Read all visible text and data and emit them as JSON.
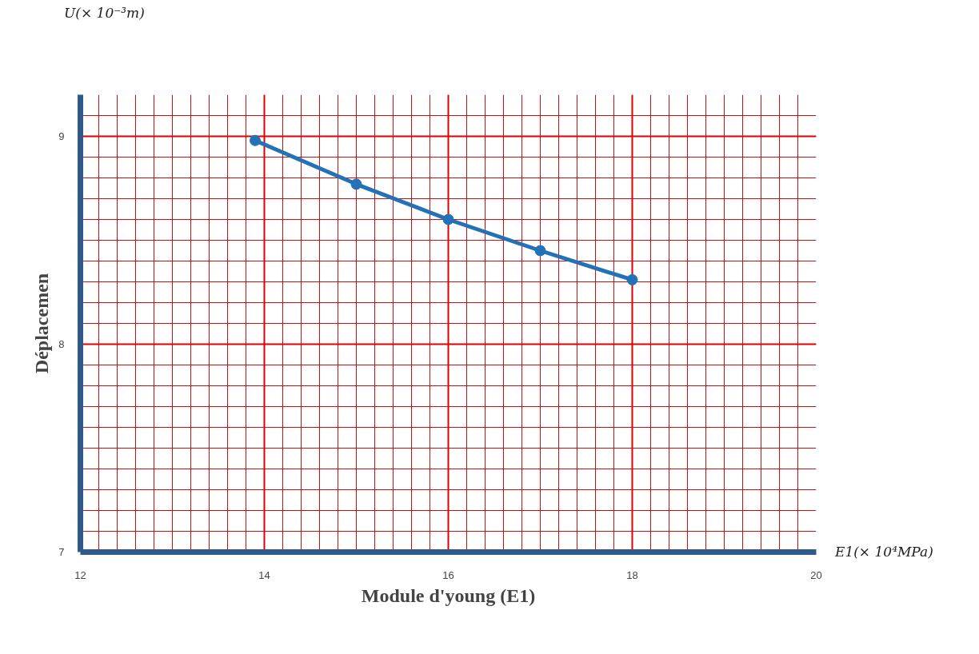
{
  "chart_data": {
    "type": "line",
    "xlabel": "Module d'young (E1)",
    "ylabel": "Déplacemen",
    "annotations": [
      "U(× 10⁻³m)",
      "E1(× 10⁴MPa)"
    ],
    "x": [
      13.9,
      15,
      16,
      17,
      18
    ],
    "series": [
      {
        "color": "#2372b8",
        "values": [
          8.98,
          8.77,
          8.6,
          8.45,
          8.31
        ]
      }
    ],
    "xlim": [
      12,
      20
    ],
    "xticks": [
      12,
      14,
      16,
      18,
      20
    ],
    "ylim": [
      7,
      9.2
    ],
    "yticks": [
      7,
      8,
      9
    ],
    "grid": true,
    "marker": "circle",
    "line_style": "solid"
  }
}
